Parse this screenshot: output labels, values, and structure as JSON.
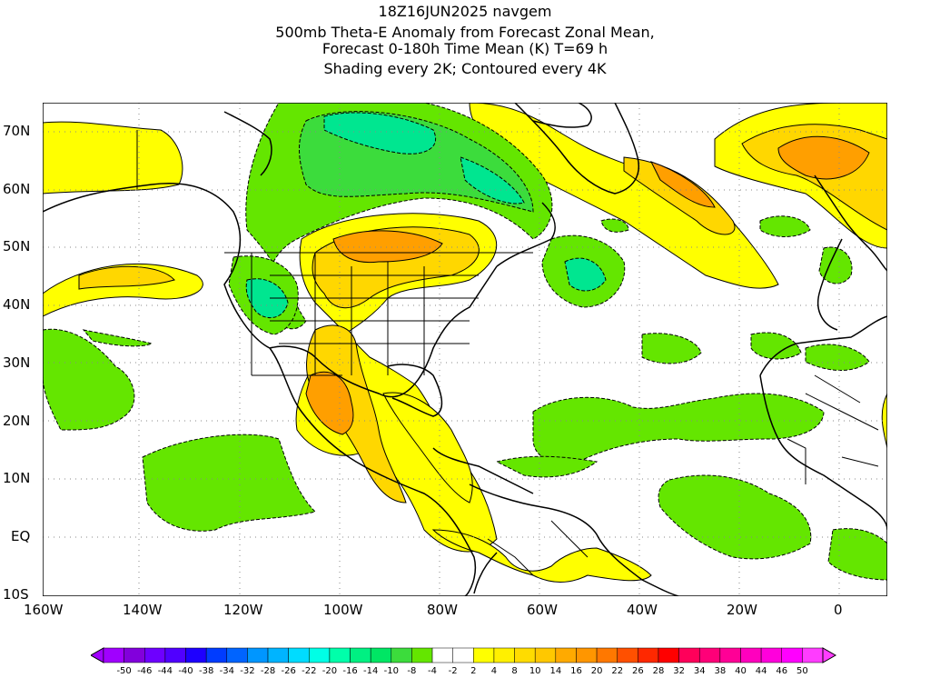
{
  "title": {
    "lines": [
      "18Z16JUN2025 navgem",
      "500mb Theta-E Anomaly from Forecast Zonal Mean,",
      "Forecast 0-180h Time Mean (K) T=69 h",
      "Shading every 2K; Contoured every 4K"
    ]
  },
  "axes": {
    "lat_labels": [
      "70N",
      "60N",
      "50N",
      "40N",
      "30N",
      "20N",
      "10N",
      "EQ",
      "10S"
    ],
    "lon_labels": [
      "160W",
      "140W",
      "120W",
      "100W",
      "80W",
      "60W",
      "40W",
      "20W",
      "0"
    ]
  },
  "colorbar": {
    "labels": [
      "-50",
      "-46",
      "-44",
      "-40",
      "-38",
      "-34",
      "-32",
      "-28",
      "-26",
      "-22",
      "-20",
      "-16",
      "-14",
      "-10",
      "-8",
      "-4",
      "-2",
      "2",
      "4",
      "8",
      "10",
      "14",
      "16",
      "20",
      "22",
      "26",
      "28",
      "32",
      "34",
      "38",
      "40",
      "44",
      "46",
      "50"
    ],
    "colors": [
      "#a000ff",
      "#8200dc",
      "#6e00ff",
      "#5000ff",
      "#1e00ff",
      "#003cff",
      "#0064ff",
      "#0096ff",
      "#00b4ff",
      "#00dcff",
      "#00ffe6",
      "#00ffaa",
      "#00f082",
      "#00e664",
      "#3cdc3c",
      "#64e600",
      "#ffffff",
      "#ffffff",
      "#ffff00",
      "#fff000",
      "#ffdc00",
      "#ffc800",
      "#ffaa00",
      "#ff9600",
      "#ff7800",
      "#ff5000",
      "#ff2800",
      "#ff0000",
      "#ff005a",
      "#ff0078",
      "#ff0096",
      "#ff00be",
      "#ff00dc",
      "#ff00ff",
      "#ff3cff"
    ],
    "anomaly_colors": {
      "positive_weak": "#ffff00",
      "positive_mid": "#ffd700",
      "positive_strong": "#ff9f00",
      "negative_weak": "#64e600",
      "negative_mid": "#3cdc3c",
      "negative_strong": "#00e690"
    }
  }
}
